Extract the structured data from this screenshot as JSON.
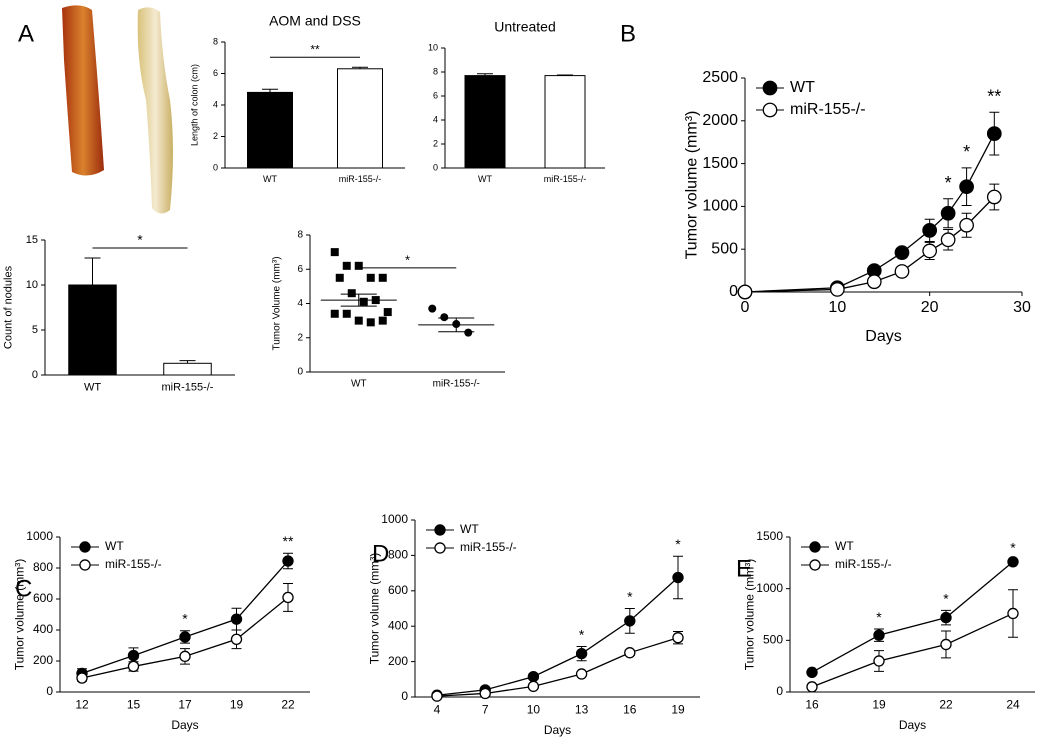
{
  "chart_data": [
    {
      "type": "bar",
      "panel": "A",
      "title": "AOM and DSS",
      "ylabel": "Length of colon (cm)",
      "categories": [
        "WT",
        "miR-155-/-"
      ],
      "values": [
        4.8,
        6.3
      ],
      "errors": [
        0.2,
        0.1
      ],
      "colors": [
        "#000000",
        "#ffffff"
      ],
      "ylim": [
        0,
        8
      ],
      "yticks": [
        0,
        2,
        4,
        6,
        8
      ],
      "significance": "**"
    },
    {
      "type": "bar",
      "title": "Untreated",
      "categories": [
        "WT",
        "miR-155-/-"
      ],
      "values": [
        7.7,
        7.7
      ],
      "errors": [
        0.15,
        0.05
      ],
      "colors": [
        "#000000",
        "#ffffff"
      ],
      "ylim": [
        0,
        10
      ],
      "yticks": [
        0,
        2,
        4,
        6,
        8,
        10
      ]
    },
    {
      "type": "bar",
      "ylabel": "Count of nodules",
      "categories": [
        "WT",
        "miR-155-/-"
      ],
      "values": [
        10,
        1.3
      ],
      "errors": [
        3,
        0.3
      ],
      "colors": [
        "#000000",
        "#ffffff"
      ],
      "ylim": [
        0,
        15
      ],
      "yticks": [
        0,
        5,
        10,
        15
      ],
      "significance": "*"
    },
    {
      "type": "scatter",
      "ylabel": "Tumor Volume (mm³)",
      "categories": [
        "WT",
        "miR-155-/-"
      ],
      "series": [
        {
          "marker": "square",
          "color": "#000000",
          "values": [
            7.0,
            6.2,
            6.2,
            5.5,
            5.5,
            5.5,
            4.6,
            4.1,
            4.2,
            3.5,
            3.4,
            3.4,
            3.0,
            2.9,
            3.0
          ]
        },
        {
          "marker": "circle",
          "color": "#000000",
          "values": [
            3.7,
            3.2,
            2.8,
            2.3
          ]
        }
      ],
      "means": [
        4.2,
        2.75
      ],
      "sems": [
        0.35,
        0.4
      ],
      "ylim": [
        0,
        8
      ],
      "yticks": [
        0,
        2,
        4,
        6,
        8
      ],
      "significance": "*"
    },
    {
      "type": "line",
      "panel": "B",
      "xlabel": "Days",
      "ylabel": "Tumor volume (mm³)",
      "x": [
        0,
        10,
        14,
        17,
        20,
        22,
        24,
        27
      ],
      "xlim": [
        0,
        30
      ],
      "xticks": [
        0,
        10,
        20,
        30
      ],
      "ylim": [
        0,
        2500
      ],
      "yticks": [
        0,
        500,
        1000,
        1500,
        2000,
        2500
      ],
      "legend": "upper left",
      "series": [
        {
          "name": "WT",
          "color": "#000000",
          "marker": "filled",
          "values": [
            0,
            50,
            250,
            460,
            720,
            920,
            1230,
            1850
          ],
          "errors": [
            0,
            20,
            30,
            40,
            130,
            170,
            220,
            250
          ]
        },
        {
          "name": "miR-155-/-",
          "color": "#000000",
          "marker": "open",
          "values": [
            0,
            30,
            120,
            240,
            480,
            610,
            780,
            1110
          ],
          "errors": [
            0,
            10,
            20,
            30,
            100,
            120,
            140,
            150
          ]
        }
      ],
      "annotations": [
        {
          "text": "*",
          "at": 22
        },
        {
          "text": "*",
          "at": 24
        },
        {
          "text": "**",
          "at": 27
        }
      ]
    },
    {
      "type": "line",
      "panel": "C",
      "xlabel": "Days",
      "ylabel": "Tumor volume (mm³)",
      "categories": [
        "12",
        "15",
        "17",
        "19",
        "22"
      ],
      "ylim": [
        0,
        1000
      ],
      "yticks": [
        0,
        200,
        400,
        600,
        800,
        1000
      ],
      "legend": "upper left",
      "series": [
        {
          "name": "WT",
          "color": "#000000",
          "marker": "filled",
          "values": [
            120,
            235,
            355,
            470,
            845
          ],
          "errors": [
            30,
            50,
            40,
            70,
            50
          ]
        },
        {
          "name": "miR-155-/-",
          "color": "#000000",
          "marker": "open",
          "values": [
            90,
            165,
            230,
            340,
            610
          ],
          "errors": [
            20,
            30,
            50,
            60,
            90
          ]
        }
      ],
      "annotations": [
        {
          "text": "*",
          "at": "17"
        },
        {
          "text": "**",
          "at": "22"
        }
      ]
    },
    {
      "type": "line",
      "panel": "D",
      "xlabel": "Days",
      "ylabel": "Tumor volume (mm³)",
      "categories": [
        "4",
        "7",
        "10",
        "13",
        "16",
        "19"
      ],
      "ylim": [
        0,
        1000
      ],
      "yticks": [
        0,
        200,
        400,
        600,
        800,
        1000
      ],
      "legend": "upper left",
      "series": [
        {
          "name": "WT",
          "color": "#000000",
          "marker": "filled",
          "values": [
            10,
            40,
            115,
            245,
            430,
            675
          ],
          "errors": [
            5,
            10,
            15,
            40,
            70,
            120
          ]
        },
        {
          "name": "miR-155-/-",
          "color": "#000000",
          "marker": "open",
          "values": [
            5,
            20,
            60,
            130,
            250,
            335
          ],
          "errors": [
            3,
            5,
            10,
            10,
            15,
            35
          ]
        }
      ],
      "annotations": [
        {
          "text": "*",
          "at": "13"
        },
        {
          "text": "*",
          "at": "16"
        },
        {
          "text": "*",
          "at": "19"
        }
      ]
    },
    {
      "type": "line",
      "panel": "E",
      "xlabel": "Days",
      "ylabel": "Tumor volume (mm³)",
      "categories": [
        "16",
        "19",
        "22",
        "24"
      ],
      "ylim": [
        0,
        1500
      ],
      "yticks": [
        0,
        500,
        1000,
        1500
      ],
      "legend": "upper left",
      "series": [
        {
          "name": "WT",
          "color": "#000000",
          "marker": "filled",
          "values": [
            190,
            550,
            720,
            1260
          ],
          "errors": [
            20,
            60,
            70,
            20
          ]
        },
        {
          "name": "miR-155-/-",
          "color": "#000000",
          "marker": "open",
          "values": [
            50,
            300,
            460,
            760
          ],
          "errors": [
            10,
            100,
            130,
            230
          ]
        }
      ],
      "annotations": [
        {
          "text": "*",
          "at": "19"
        },
        {
          "text": "*",
          "at": "22"
        },
        {
          "text": "*",
          "at": "24"
        }
      ]
    }
  ]
}
